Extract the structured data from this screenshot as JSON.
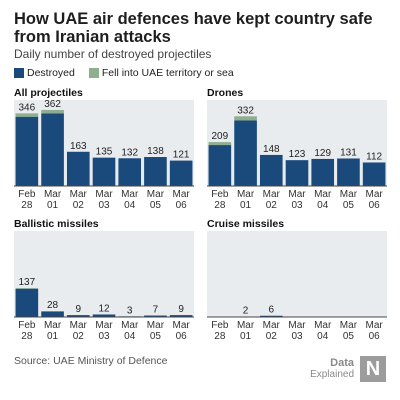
{
  "header": {
    "title": "How UAE air defences have kept country safe from Iranian attacks",
    "subtitle": "Daily number of destroyed projectiles"
  },
  "legend": {
    "destroyed_label": "Destroyed",
    "fell_label": "Fell into UAE territory or sea"
  },
  "colors": {
    "destroyed": "#1a4a7c",
    "fell": "#8fae8f",
    "panel_bg": "#e9ecef"
  },
  "source": "Source: UAE Ministry of Defence",
  "logo": {
    "line1": "Data",
    "line2": "Explained",
    "mark": "N"
  },
  "chart_data": [
    {
      "type": "bar",
      "title": "All projectiles",
      "categories": [
        "Feb 28",
        "Mar 01",
        "Mar 02",
        "Mar 03",
        "Mar 04",
        "Mar 05",
        "Mar 06"
      ],
      "ylim": [
        0,
        400
      ],
      "series": [
        {
          "name": "Destroyed",
          "values": [
            330,
            346,
            163,
            135,
            132,
            138,
            121
          ]
        },
        {
          "name": "Fell into UAE territory or sea",
          "values": [
            16,
            16,
            0,
            0,
            0,
            0,
            0
          ]
        }
      ],
      "totals": [
        "346",
        "362",
        "163",
        "135",
        "132",
        "138",
        "121"
      ]
    },
    {
      "type": "bar",
      "title": "Drones",
      "categories": [
        "Feb 28",
        "Mar 01",
        "Mar 02",
        "Mar 03",
        "Mar 04",
        "Mar 05",
        "Mar 06"
      ],
      "ylim": [
        0,
        400
      ],
      "series": [
        {
          "name": "Destroyed",
          "values": [
            195,
            312,
            148,
            123,
            129,
            131,
            112
          ]
        },
        {
          "name": "Fell into UAE territory or sea",
          "values": [
            14,
            20,
            0,
            0,
            0,
            0,
            0
          ]
        }
      ],
      "totals": [
        "209",
        "332",
        "148",
        "123",
        "129",
        "131",
        "112"
      ]
    },
    {
      "type": "bar",
      "title": "Ballistic missiles",
      "categories": [
        "Feb 28",
        "Mar 01",
        "Mar 02",
        "Mar 03",
        "Mar 04",
        "Mar 05",
        "Mar 06"
      ],
      "ylim": [
        0,
        400
      ],
      "series": [
        {
          "name": "Destroyed",
          "values": [
            135,
            26,
            9,
            12,
            3,
            7,
            9
          ]
        },
        {
          "name": "Fell into UAE territory or sea",
          "values": [
            2,
            2,
            0,
            0,
            0,
            0,
            0
          ]
        }
      ],
      "totals": [
        "137",
        "28",
        "9",
        "12",
        "3",
        "7",
        "9"
      ]
    },
    {
      "type": "bar",
      "title": "Cruise missiles",
      "categories": [
        "Feb 28",
        "Mar 01",
        "Mar 02",
        "Mar 03",
        "Mar 04",
        "Mar 05",
        "Mar 06"
      ],
      "ylim": [
        0,
        400
      ],
      "series": [
        {
          "name": "Destroyed",
          "values": [
            0,
            2,
            6,
            0,
            0,
            0,
            0
          ]
        },
        {
          "name": "Fell into UAE territory or sea",
          "values": [
            0,
            0,
            0,
            0,
            0,
            0,
            0
          ]
        }
      ],
      "totals": [
        "",
        "2",
        "6",
        "",
        "",
        "",
        ""
      ]
    }
  ]
}
